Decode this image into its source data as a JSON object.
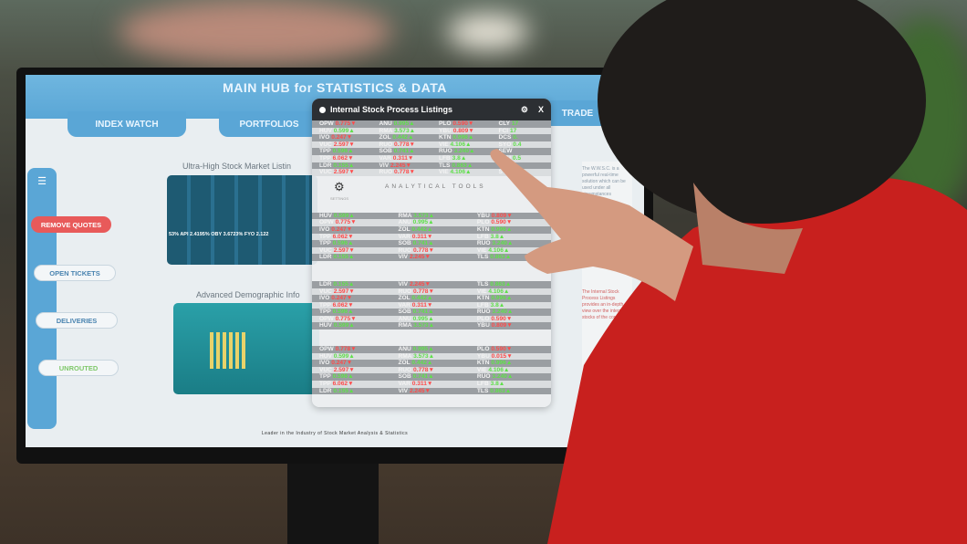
{
  "screen": {
    "title": "MAIN HUB for STATISTICS & DATA",
    "tabs": [
      {
        "label": "INDEX WATCH"
      },
      {
        "label": "PORTFOLIOS"
      },
      {
        "label": "TRADE"
      }
    ],
    "sidebar": [
      {
        "label": "REMOVE QUOTES",
        "color": "#e85a5a"
      },
      {
        "label": "OPEN TICKETS"
      },
      {
        "label": "DELIVERIES"
      },
      {
        "label": "UNROUTED"
      }
    ],
    "section1": "Ultra-High Stock Market Listin",
    "section2": "Advanced Demographic Info",
    "ticker_strip": "53%  API  2.4195%   OBY  3.6723%   FYO  2.122",
    "right_note_top": "The W.W.S.C. is a powerful real-time solution which can be used under all circumstances",
    "right_note_bottom": "The Internal Stock Process Listings provides an in-depth view over the internal stocks of the company",
    "footer": "Leader in the Industry of Stock Market Analysis & Statistics"
  },
  "popup": {
    "title": "Internal Stock Process Listings",
    "close": "X",
    "tools_label": "ANALYTICAL TOOLS",
    "settings_label": "SETTINGS",
    "sections": [
      [
        [
          [
            "OPW",
            "0.775",
            "d"
          ],
          [
            "ANU",
            "0.995",
            "u"
          ],
          [
            "PLO",
            "0.590",
            "d"
          ],
          [
            "CLY",
            "17",
            ""
          ]
        ],
        [
          [
            "HUV",
            "0.599",
            "u"
          ],
          [
            "RMA",
            "3.573",
            "u"
          ],
          [
            "YBU",
            "0.809",
            "d"
          ],
          [
            "FCI",
            "17",
            ""
          ]
        ],
        [
          [
            "IVO",
            "0.247",
            "d"
          ],
          [
            "ZOL",
            "0.442",
            "u"
          ],
          [
            "KTN",
            "0.996",
            "u"
          ],
          [
            "DCS",
            "0.",
            ""
          ]
        ],
        [
          [
            "VUC",
            "2.597",
            "d"
          ],
          [
            "RUO",
            "0.778",
            "d"
          ],
          [
            "VIE",
            "4.106",
            "u"
          ],
          [
            "SYO",
            "0.4",
            ""
          ]
        ],
        [
          [
            "TPP",
            "0.596",
            "u"
          ],
          [
            "SOB",
            "0.741",
            "u"
          ],
          [
            "RUO",
            "3.240",
            "u"
          ],
          [
            "SEW",
            "",
            ""
          ]
        ],
        [
          [
            "TPP",
            "6.062",
            "d"
          ],
          [
            "VAR",
            "0.311",
            "d"
          ],
          [
            "LFB",
            "3.8",
            "u"
          ],
          [
            "KFU",
            "0.5",
            ""
          ]
        ],
        [
          [
            "LDR",
            "0.155",
            "u"
          ],
          [
            "VIV",
            "2.245",
            "d"
          ],
          [
            "TLS",
            "0.863",
            "u"
          ],
          [
            "USP",
            "",
            ""
          ]
        ],
        [
          [
            "VUC",
            "2.597",
            "d"
          ],
          [
            "RUO",
            "0.778",
            "d"
          ],
          [
            "VIE",
            "4.106",
            "u"
          ],
          [
            "SYO",
            "0.4",
            ""
          ]
        ]
      ],
      [
        [
          [
            "HUV",
            "0.599",
            "u"
          ],
          [
            "RMA",
            "3.573",
            "u"
          ],
          [
            "YBU",
            "0.809",
            "d"
          ]
        ],
        [
          [
            "OPW",
            "0.775",
            "d"
          ],
          [
            "ANU",
            "0.995",
            "u"
          ],
          [
            "PLO",
            "0.590",
            "d"
          ]
        ],
        [
          [
            "IVO",
            "0.247",
            "d"
          ],
          [
            "ZOL",
            "0.442",
            "u"
          ],
          [
            "KTN",
            "0.996",
            "u"
          ]
        ],
        [
          [
            "TPP",
            "6.062",
            "d"
          ],
          [
            "VAR",
            "0.311",
            "d"
          ],
          [
            "LFB",
            "3.8",
            "u"
          ]
        ],
        [
          [
            "TPP",
            "0.596",
            "u"
          ],
          [
            "SOB",
            "0.741",
            "u"
          ],
          [
            "RUO",
            "3.240",
            "u"
          ]
        ],
        [
          [
            "VUC",
            "2.597",
            "d"
          ],
          [
            "RUO",
            "0.778",
            "d"
          ],
          [
            "VIE",
            "4.106",
            "u"
          ]
        ],
        [
          [
            "LDR",
            "0.155",
            "u"
          ],
          [
            "VIV",
            "2.245",
            "d"
          ],
          [
            "TLS",
            "0.863",
            "u"
          ]
        ]
      ],
      [
        [
          [
            "LDR",
            "0.155",
            "u"
          ],
          [
            "VIV",
            "2.245",
            "d"
          ],
          [
            "TLS",
            "0.863",
            "u"
          ]
        ],
        [
          [
            "VUC",
            "2.597",
            "d"
          ],
          [
            "RUO",
            "0.778",
            "d"
          ],
          [
            "VIE",
            "4.106",
            "u"
          ]
        ],
        [
          [
            "IVO",
            "0.247",
            "d"
          ],
          [
            "ZOL",
            "0.442",
            "u"
          ],
          [
            "KTN",
            "0.996",
            "u"
          ]
        ],
        [
          [
            "TPP",
            "6.062",
            "d"
          ],
          [
            "VAR",
            "0.311",
            "d"
          ],
          [
            "LFB",
            "3.8",
            "u"
          ]
        ],
        [
          [
            "TPP",
            "0.596",
            "u"
          ],
          [
            "SOB",
            "0.741",
            "u"
          ],
          [
            "RUO",
            "3.240",
            "u"
          ]
        ],
        [
          [
            "OPW",
            "0.775",
            "d"
          ],
          [
            "ANU",
            "0.995",
            "u"
          ],
          [
            "PLO",
            "0.590",
            "d"
          ]
        ],
        [
          [
            "HUV",
            "0.599",
            "u"
          ],
          [
            "RMA",
            "3.573",
            "u"
          ],
          [
            "YBU",
            "0.809",
            "d"
          ]
        ]
      ],
      [
        [
          [
            "OPW",
            "0.778",
            "d"
          ],
          [
            "ANU",
            "0.995",
            "u"
          ],
          [
            "PLO",
            "0.590",
            "d"
          ]
        ],
        [
          [
            "HUV",
            "0.599",
            "u"
          ],
          [
            "RMA",
            "3.573",
            "u"
          ],
          [
            "YBU",
            "0.015",
            "d"
          ]
        ],
        [
          [
            "IVO",
            "0.247",
            "d"
          ],
          [
            "ZOL",
            "0.442",
            "u"
          ],
          [
            "KTN",
            "0.996",
            "u"
          ]
        ],
        [
          [
            "VUC",
            "2.597",
            "d"
          ],
          [
            "RUO",
            "0.778",
            "d"
          ],
          [
            "VIE",
            "4.106",
            "u"
          ]
        ],
        [
          [
            "TPP",
            "0.596",
            "u"
          ],
          [
            "SOB",
            "0.741",
            "u"
          ],
          [
            "RUO",
            "3.240",
            "u"
          ]
        ],
        [
          [
            "TPP",
            "6.062",
            "d"
          ],
          [
            "VAR",
            "0.311",
            "d"
          ],
          [
            "LFB",
            "3.8",
            "u"
          ]
        ],
        [
          [
            "LDR",
            "0.155",
            "u"
          ],
          [
            "VIV",
            "2.245",
            "d"
          ],
          [
            "TLS",
            "0.863",
            "u"
          ]
        ]
      ]
    ]
  },
  "colors": {
    "accent": "#5aa6d6",
    "up": "#5fe04a",
    "down": "#ff4a4a",
    "shirt": "#c8201e"
  }
}
